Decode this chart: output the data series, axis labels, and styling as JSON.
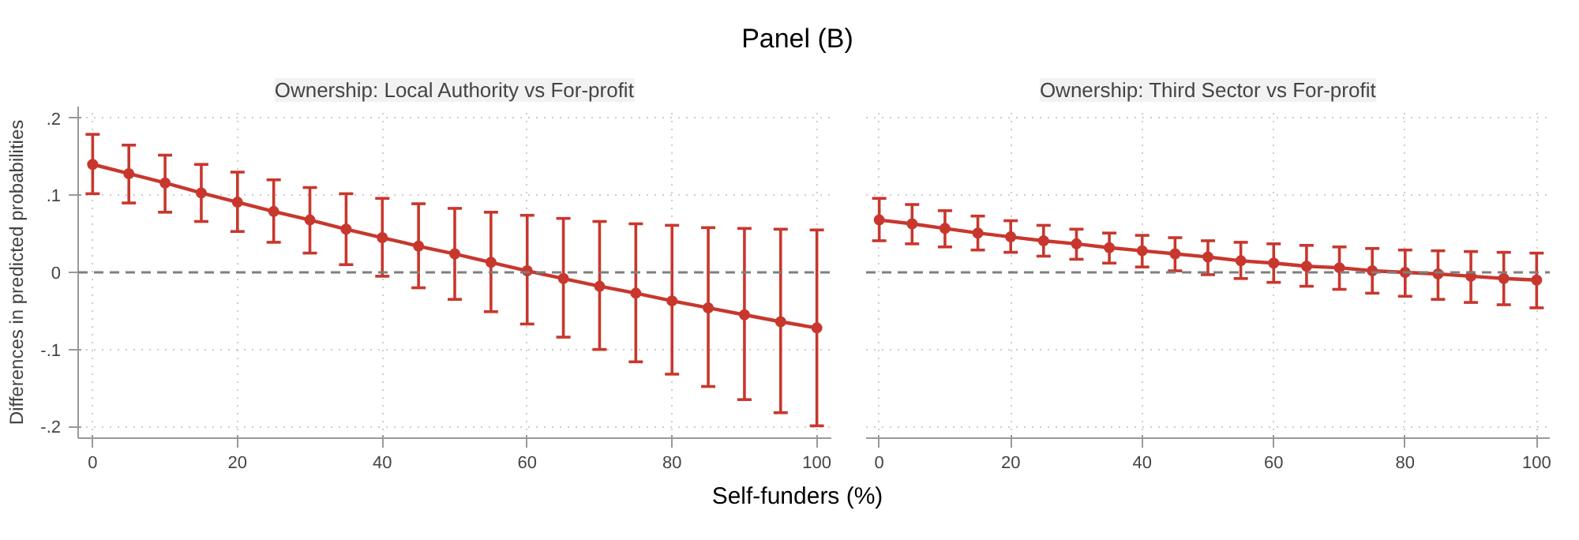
{
  "chart_data": [
    {
      "type": "line",
      "title": "Panel (B)",
      "subtitle": "Ownership: Local Authority vs For-profit",
      "xlabel": "Self-funders (%)",
      "ylabel": "Differences in predicted probabilities",
      "x": [
        0,
        5,
        10,
        15,
        20,
        25,
        30,
        35,
        40,
        45,
        50,
        55,
        60,
        65,
        70,
        75,
        80,
        85,
        90,
        95,
        100
      ],
      "series": [
        {
          "color": "#c8372d",
          "values": [
            0.14,
            0.128,
            0.116,
            0.103,
            0.091,
            0.079,
            0.068,
            0.056,
            0.045,
            0.034,
            0.024,
            0.013,
            0.002,
            -0.008,
            -0.018,
            -0.027,
            -0.037,
            -0.046,
            -0.055,
            -0.064,
            -0.072
          ],
          "errors": [
            [
              0.102,
              0.179
            ],
            [
              0.09,
              0.165
            ],
            [
              0.078,
              0.152
            ],
            [
              0.066,
              0.14
            ],
            [
              0.053,
              0.13
            ],
            [
              0.039,
              0.12
            ],
            [
              0.025,
              0.11
            ],
            [
              0.01,
              0.102
            ],
            [
              -0.005,
              0.096
            ],
            [
              -0.02,
              0.089
            ],
            [
              -0.035,
              0.083
            ],
            [
              -0.051,
              0.078
            ],
            [
              -0.067,
              0.074
            ],
            [
              -0.084,
              0.07
            ],
            [
              -0.1,
              0.066
            ],
            [
              -0.116,
              0.063
            ],
            [
              -0.132,
              0.061
            ],
            [
              -0.148,
              0.058
            ],
            [
              -0.165,
              0.057
            ],
            [
              -0.182,
              0.056
            ],
            [
              -0.199,
              0.055
            ]
          ]
        }
      ],
      "xlim": [
        -2,
        102
      ],
      "ylim": [
        -0.215,
        0.215
      ],
      "xticks": [
        0,
        20,
        40,
        60,
        80,
        100
      ],
      "yticks": [
        {
          "value": -0.2,
          "label": "-.2"
        },
        {
          "value": -0.1,
          "label": "-.1"
        },
        0,
        {
          "value": 0.1,
          "label": ".1"
        },
        {
          "value": 0.2,
          "label": ".2"
        }
      ],
      "ref_lines": [
        {
          "axis": "y",
          "value": 0,
          "color": "#7f7f7f",
          "line_style": "dashed"
        }
      ],
      "grid": true,
      "marker": "circle",
      "line_style": "solid"
    },
    {
      "type": "line",
      "subtitle": "Ownership: Third Sector vs For-profit",
      "x": [
        0,
        5,
        10,
        15,
        20,
        25,
        30,
        35,
        40,
        45,
        50,
        55,
        60,
        65,
        70,
        75,
        80,
        85,
        90,
        95,
        100
      ],
      "series": [
        {
          "color": "#c8372d",
          "values": [
            0.068,
            0.063,
            0.057,
            0.051,
            0.046,
            0.041,
            0.037,
            0.032,
            0.028,
            0.024,
            0.02,
            0.015,
            0.012,
            0.008,
            0.006,
            0.002,
            0.0,
            -0.002,
            -0.005,
            -0.008,
            -0.01
          ],
          "errors": [
            [
              0.041,
              0.096
            ],
            [
              0.037,
              0.088
            ],
            [
              0.033,
              0.08
            ],
            [
              0.029,
              0.073
            ],
            [
              0.026,
              0.067
            ],
            [
              0.021,
              0.061
            ],
            [
              0.017,
              0.056
            ],
            [
              0.012,
              0.051
            ],
            [
              0.007,
              0.048
            ],
            [
              0.002,
              0.045
            ],
            [
              -0.003,
              0.041
            ],
            [
              -0.008,
              0.039
            ],
            [
              -0.013,
              0.037
            ],
            [
              -0.018,
              0.035
            ],
            [
              -0.022,
              0.033
            ],
            [
              -0.027,
              0.031
            ],
            [
              -0.031,
              0.029
            ],
            [
              -0.035,
              0.028
            ],
            [
              -0.039,
              0.027
            ],
            [
              -0.042,
              0.026
            ],
            [
              -0.046,
              0.025
            ]
          ]
        }
      ],
      "xlim": [
        -2,
        102
      ],
      "ylim": [
        -0.215,
        0.215
      ],
      "xticks": [
        0,
        20,
        40,
        60,
        80,
        100
      ],
      "yticks": [
        -0.2,
        -0.1,
        0,
        0.1,
        0.2
      ],
      "tick_labels": "x",
      "ref_lines": [
        {
          "axis": "y",
          "value": 0,
          "color": "#7f7f7f",
          "line_style": "dashed"
        }
      ],
      "grid": true,
      "marker": "circle",
      "line_style": "solid"
    }
  ]
}
